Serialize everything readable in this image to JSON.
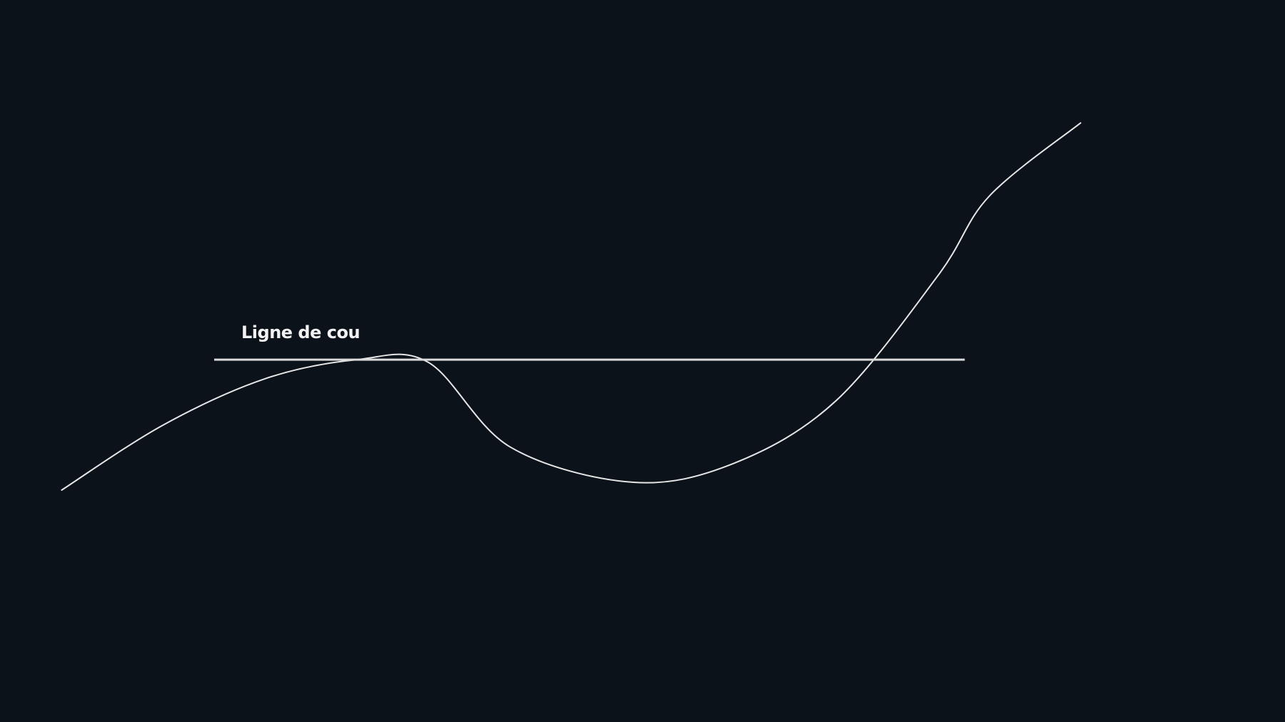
{
  "colors": {
    "background": "#0c121a",
    "price_line": "#e6e6e6",
    "neckline": "#d9d9d9",
    "label": "#f2f2f2"
  },
  "chart_data": {
    "type": "line",
    "title": "",
    "xlabel": "",
    "ylabel": "",
    "grid": false,
    "legend": "none",
    "series": [
      {
        "points": [
          {
            "x": 0,
            "y": 0.0
          },
          {
            "x": 5,
            "y": 0.24
          },
          {
            "x": 10,
            "y": 0.41
          },
          {
            "x": 14.5,
            "y": 0.48
          },
          {
            "x": 18,
            "y": 0.47
          },
          {
            "x": 22,
            "y": 0.16
          },
          {
            "x": 28,
            "y": 0.03
          },
          {
            "x": 33,
            "y": 0.1
          },
          {
            "x": 38,
            "y": 0.33
          },
          {
            "x": 43,
            "y": 0.79
          },
          {
            "x": 45.5,
            "y": 1.08
          },
          {
            "x": 50,
            "y": 1.35
          }
        ]
      }
    ],
    "annotations": [
      {
        "type": "horizontal-line",
        "label": "Ligne de cou",
        "y": 0.48,
        "x_start": 7.5,
        "x_end": 44.3
      }
    ],
    "xlim": [
      -3,
      60
    ],
    "ylim": [
      -0.85,
      1.8
    ]
  }
}
